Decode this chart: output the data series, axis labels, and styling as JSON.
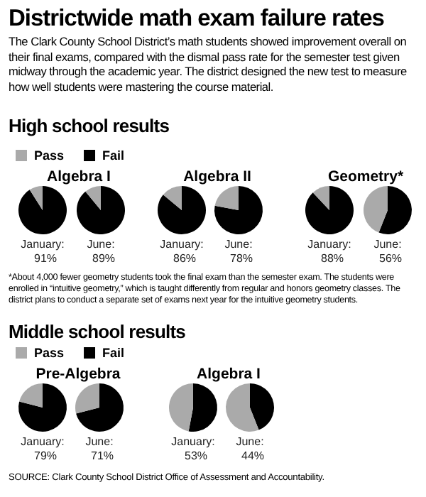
{
  "chart_data": [
    {
      "type": "other",
      "title": "Districtwide math exam failure rates",
      "subtitle": "The Clark County School District’s math students showed improvement overall on their final exams, compared with the dismal pass rate for the semester test given midway through the academic year. The district designed the new test to measure how well students were mastering the course material.",
      "annotations": [
        "High school results",
        "*About 4,000 fewer geometry students took the final exam than the semester exam. The students were enrolled in “intuitive geometry,” which is taught differently from regular and honors geometry classes. The district plans to conduct a separate set of exams next year for the intuitive geometry students.",
        "Middle school results",
        "SOURCE: Clark County School District Office of Assessment and Accountability."
      ]
    },
    {
      "type": "pie",
      "title": "Algebra I",
      "legend": "top",
      "xlabel": "January:",
      "categories": [
        "Pass",
        "Fail"
      ],
      "values": [
        9,
        91
      ],
      "colors": [
        "#aaaaaa",
        "#000000"
      ],
      "value_labels": [
        null,
        "91%"
      ]
    },
    {
      "type": "pie",
      "xlabel": "June:",
      "categories": [
        null,
        null
      ],
      "values": [
        11,
        89
      ],
      "colors": [
        "#aaaaaa",
        "#000000"
      ],
      "value_labels": [
        null,
        "89%"
      ]
    },
    {
      "type": "pie",
      "title": "Algebra II",
      "xlabel": "January:",
      "categories": [
        null,
        null
      ],
      "values": [
        14,
        86
      ],
      "colors": [
        "#aaaaaa",
        "#000000"
      ],
      "value_labels": [
        null,
        "86%"
      ]
    },
    {
      "type": "pie",
      "xlabel": "June:",
      "categories": [
        null,
        null
      ],
      "values": [
        22,
        78
      ],
      "colors": [
        "#aaaaaa",
        "#000000"
      ],
      "value_labels": [
        null,
        "78%"
      ]
    },
    {
      "type": "pie",
      "title": "Geometry*",
      "xlabel": "January:",
      "categories": [
        null,
        null
      ],
      "values": [
        12,
        88
      ],
      "colors": [
        "#aaaaaa",
        "#000000"
      ],
      "value_labels": [
        null,
        "88%"
      ]
    },
    {
      "type": "pie",
      "xlabel": "June:",
      "categories": [
        null,
        null
      ],
      "values": [
        44,
        56
      ],
      "colors": [
        "#aaaaaa",
        "#000000"
      ],
      "value_labels": [
        null,
        "56%"
      ]
    },
    {
      "type": "pie",
      "title": "Pre-Algebra",
      "legend": "top",
      "xlabel": "January:",
      "categories": [
        "Pass",
        "Fail"
      ],
      "values": [
        21,
        79
      ],
      "colors": [
        "#aaaaaa",
        "#000000"
      ],
      "value_labels": [
        null,
        "79%"
      ]
    },
    {
      "type": "pie",
      "xlabel": "June:",
      "categories": [
        null,
        null
      ],
      "values": [
        29,
        71
      ],
      "colors": [
        "#aaaaaa",
        "#000000"
      ],
      "value_labels": [
        null,
        "71%"
      ]
    },
    {
      "type": "pie",
      "title": "Algebra I",
      "xlabel": "January:",
      "categories": [
        null,
        null
      ],
      "values": [
        47,
        53
      ],
      "colors": [
        "#aaaaaa",
        "#000000"
      ],
      "value_labels": [
        null,
        "53%"
      ]
    },
    {
      "type": "pie",
      "xlabel": "June:",
      "categories": [
        null,
        null
      ],
      "values": [
        56,
        44
      ],
      "colors": [
        "#aaaaaa",
        "#000000"
      ],
      "value_labels": [
        null,
        "44%"
      ]
    }
  ]
}
